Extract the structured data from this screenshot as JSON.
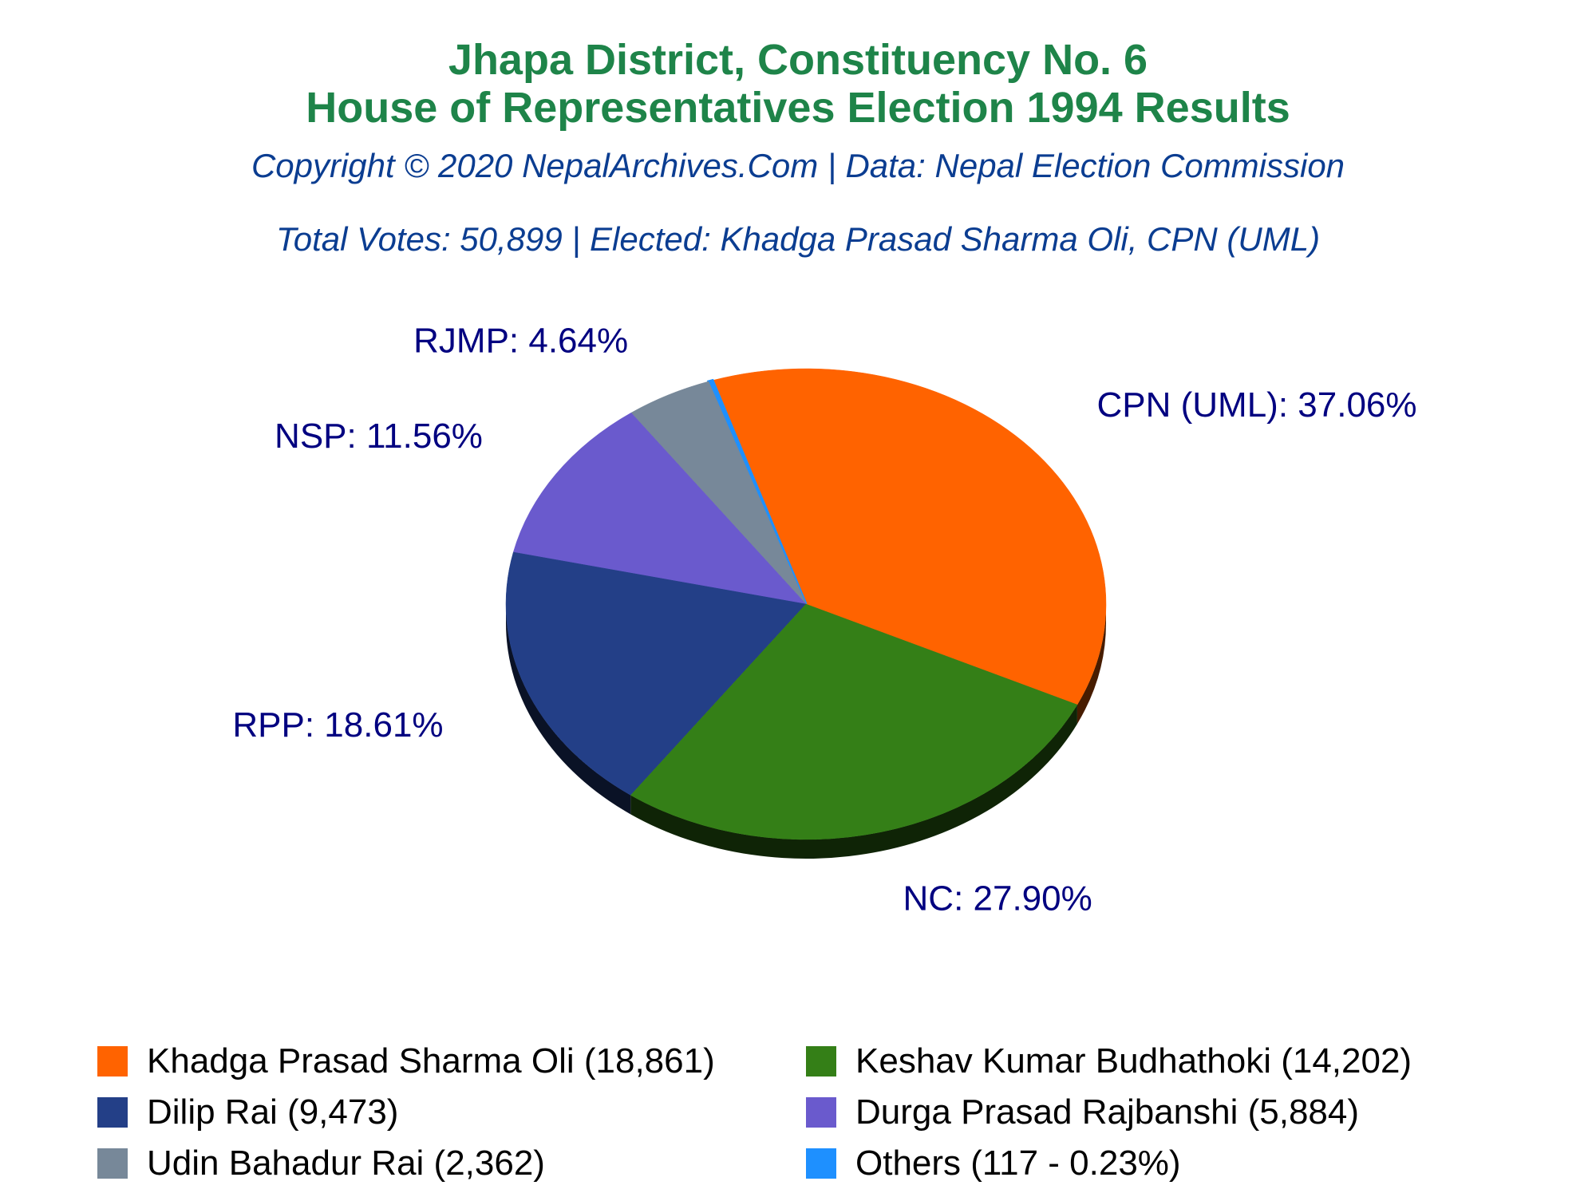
{
  "header": {
    "title_line1": "Jhapa District, Constituency No. 6",
    "title_line2": "House of Representatives Election 1994 Results",
    "copyright": "Copyright © 2020 NepalArchives.Com | Data: Nepal Election Commission",
    "summary": "Total Votes: 50,899 | Elected: Khadga Prasad Sharma Oli, CPN (UML)"
  },
  "colors": {
    "title": "#1e8449",
    "subtitle": "#0b3d91",
    "slice_label": "#000080"
  },
  "chart_data": {
    "type": "pie",
    "style": "3d",
    "slices": [
      {
        "label": "CPN (UML): 37.06%",
        "party": "CPN (UML)",
        "percent": 37.06,
        "color": "#ff6300"
      },
      {
        "label": "",
        "party": "Others",
        "percent": 0.23,
        "color": "#1e90ff"
      },
      {
        "label": "RJMP: 4.64%",
        "party": "RJMP",
        "percent": 4.64,
        "color": "#778899"
      },
      {
        "label": "NSP: 11.56%",
        "party": "NSP",
        "percent": 11.56,
        "color": "#6a5acd"
      },
      {
        "label": "RPP: 18.61%",
        "party": "RPP",
        "percent": 18.61,
        "color": "#233f87"
      },
      {
        "label": "NC: 27.90%",
        "party": "NC",
        "percent": 27.9,
        "color": "#347f17"
      }
    ],
    "legend": {
      "placement": "bottom",
      "entries": [
        {
          "text": "Khadga Prasad Sharma Oli (18,861)",
          "color": "#ff6300"
        },
        {
          "text": "Keshav Kumar Budhathoki (14,202)",
          "color": "#347f17"
        },
        {
          "text": "Dilip Rai (9,473)",
          "color": "#233f87"
        },
        {
          "text": "Durga Prasad Rajbanshi (5,884)",
          "color": "#6a5acd"
        },
        {
          "text": "Udin Bahadur Rai (2,362)",
          "color": "#778899"
        },
        {
          "text": "Others (117 - 0.23%)",
          "color": "#1e90ff"
        }
      ]
    }
  }
}
